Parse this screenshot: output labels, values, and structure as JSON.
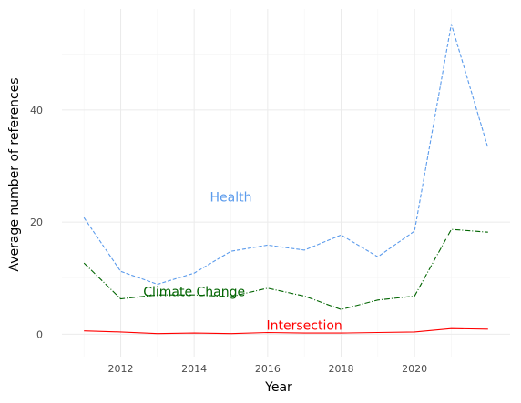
{
  "chart_data": {
    "type": "line",
    "title": "",
    "xlabel": "Year",
    "ylabel": "Average number of references",
    "xlim": [
      2010.4,
      2022.6
    ],
    "ylim": [
      -4,
      58
    ],
    "x_ticks": [
      2012,
      2014,
      2016,
      2018,
      2020
    ],
    "y_ticks": [
      0,
      20,
      40
    ],
    "grid": true,
    "x": [
      2011,
      2012,
      2013,
      2014,
      2015,
      2016,
      2017,
      2018,
      2019,
      2020,
      2021,
      2022
    ],
    "series": [
      {
        "name": "Health",
        "color": "#5b9bec",
        "dash": "dashed",
        "label_at": [
          2015,
          24.5
        ],
        "values": [
          20.8,
          11.2,
          8.9,
          10.9,
          14.8,
          15.9,
          15.0,
          17.7,
          13.8,
          18.4,
          55.3,
          33.2
        ]
      },
      {
        "name": "Climate Change",
        "color": "#006400",
        "dash": "dashdot",
        "label_at": [
          2014,
          7.6
        ],
        "values": [
          12.7,
          6.3,
          7.0,
          7.0,
          6.7,
          8.2,
          6.8,
          4.4,
          6.1,
          6.8,
          18.7,
          18.2
        ]
      },
      {
        "name": "Intersection",
        "color": "#ff0000",
        "dash": "solid",
        "label_at": [
          2017,
          1.6
        ],
        "values": [
          0.6,
          0.4,
          0.1,
          0.2,
          0.1,
          0.3,
          0.2,
          0.2,
          0.3,
          0.4,
          1.0,
          0.9
        ]
      }
    ]
  }
}
